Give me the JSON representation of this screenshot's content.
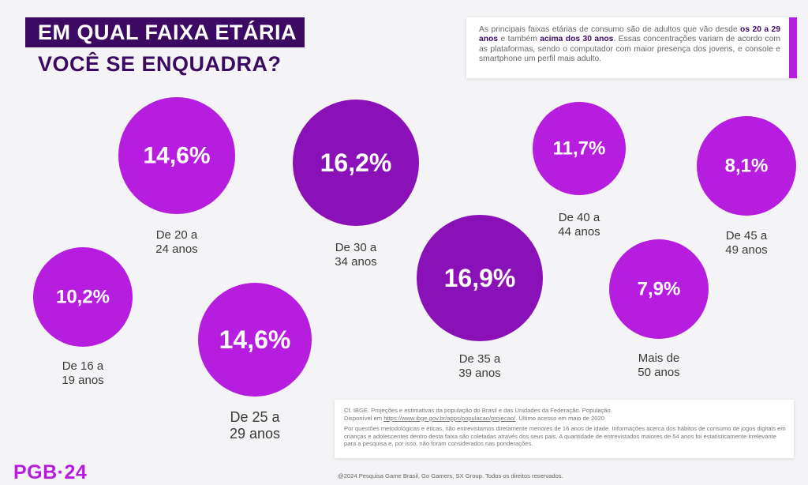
{
  "title": {
    "line1": "EM QUAL FAIXA ETÁRIA",
    "line2": "VOCÊ SE ENQUADRA?"
  },
  "intro": {
    "text_a": "As principais faixas etárias de consumo são de adultos que vão desde ",
    "bold_a": "os 20 a 29 anos",
    "text_b": " e também ",
    "bold_b": "acima dos 30 anos",
    "text_c": ". Essas concentrações variam de acordo com as plataformas, sendo o computador com maior presença dos jovens, e console e smartphone um perfil mais adulto."
  },
  "chart_data": {
    "type": "bubble",
    "categories": [
      "De 16 a 19 anos",
      "De 20 a 24 anos",
      "De 25 a 29 anos",
      "De 30 a 34 anos",
      "De 35 a 39 anos",
      "De 40 a 44 anos",
      "De 45 a 49 anos",
      "Mais de 50 anos"
    ],
    "category_lines": [
      [
        "De 16 a",
        "19 anos"
      ],
      [
        "De 20 a",
        "24 anos"
      ],
      [
        "De 25 a",
        "29 anos"
      ],
      [
        "De 30 a",
        "34 anos"
      ],
      [
        "De 35 a",
        "39 anos"
      ],
      [
        "De 40 a",
        "44 anos"
      ],
      [
        "De 45 a",
        "49 anos"
      ],
      [
        "Mais de",
        "50 anos"
      ]
    ],
    "values": [
      10.2,
      14.6,
      14.6,
      16.2,
      16.9,
      11.7,
      8.1,
      7.9
    ],
    "labels": [
      "10,2%",
      "14,6%",
      "14,6%",
      "16,2%",
      "16,9%",
      "11,7%",
      "8,1%",
      "7,9%"
    ],
    "colors": [
      "#b71ddf",
      "#b71ddf",
      "#b71ddf",
      "#8a11b8",
      "#8a11b8",
      "#b71ddf",
      "#b71ddf",
      "#b71ddf"
    ]
  },
  "source": {
    "line1": "Cf. IBGE. Projeções e estimativas da população do Brasil e das Unidades da Federação. População.",
    "line2_pre": "Disponível em ",
    "line2_url": "https://www.ibge.gov.br/apps/populacao/projecao/",
    "line2_post": ". Último acesso em maio de 2020",
    "note": "Por questões metodológicas e éticas, não entrevistamos diretamente menores de 16 anos de idade. Informações acerca dos hábitos de consumo de jogos digitais em crianças e adolescentes dentro desta faixa são coletadas através dos seus pais. A quantidade de entrevistados maiores de 54 anos foi estatisticamente irrelevante para a pesquisa e, por isso, não foram considerados nas ponderações."
  },
  "logo": "PGB·24",
  "copyright": "@2024 Pesquisa Game Brasil, Go Gamers, SX Group. Todos os direitos reservados."
}
